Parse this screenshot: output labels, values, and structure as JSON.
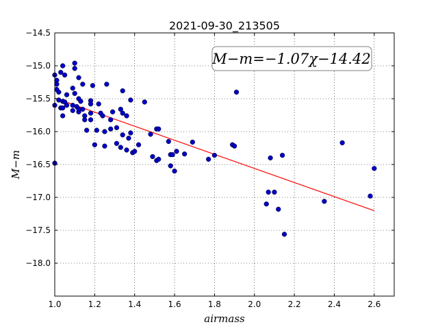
{
  "chart_data": {
    "type": "scatter",
    "title": "2021-09-30_213505",
    "xlabel": "airmass",
    "ylabel": "M−m",
    "xlim": [
      1.0,
      2.7
    ],
    "ylim": [
      -18.5,
      -14.5
    ],
    "y_inverted": true,
    "xticks": [
      1.0,
      1.2,
      1.4,
      1.6,
      1.8,
      2.0,
      2.2,
      2.4,
      2.6
    ],
    "yticks": [
      -14.5,
      -15.0,
      -15.5,
      -16.0,
      -16.5,
      -17.0,
      -17.5,
      -18.0
    ],
    "xtick_labels": [
      "1.0",
      "1.2",
      "1.4",
      "1.6",
      "1.8",
      "2.0",
      "2.2",
      "2.4",
      "2.6"
    ],
    "ytick_labels": [
      "−14.5",
      "−15.0",
      "−15.5",
      "−16.0",
      "−16.5",
      "−17.0",
      "−17.5",
      "−18.0"
    ],
    "grid": true,
    "annotation": "M−m=−1.07χ−14.42",
    "fit": {
      "slope": -1.07,
      "intercept": -14.42,
      "x_range": [
        1.0,
        2.6
      ],
      "color": "#ff0000"
    },
    "point_color": "#0000cc",
    "points": [
      [
        1.0,
        -15.14
      ],
      [
        1.0,
        -15.6
      ],
      [
        1.0,
        -16.48
      ],
      [
        1.01,
        -15.28
      ],
      [
        1.01,
        -15.36
      ],
      [
        1.01,
        -15.22
      ],
      [
        1.02,
        -15.4
      ],
      [
        1.02,
        -15.52
      ],
      [
        1.03,
        -15.1
      ],
      [
        1.03,
        -15.64
      ],
      [
        1.04,
        -15.0
      ],
      [
        1.04,
        -15.54
      ],
      [
        1.04,
        -15.76
      ],
      [
        1.04,
        -15.64
      ],
      [
        1.05,
        -15.14
      ],
      [
        1.05,
        -15.55
      ],
      [
        1.06,
        -15.44
      ],
      [
        1.06,
        -15.6
      ],
      [
        1.09,
        -15.34
      ],
      [
        1.09,
        -15.6
      ],
      [
        1.09,
        -15.68
      ],
      [
        1.1,
        -14.96
      ],
      [
        1.1,
        -15.04
      ],
      [
        1.1,
        -15.42
      ],
      [
        1.11,
        -15.62
      ],
      [
        1.12,
        -15.5
      ],
      [
        1.12,
        -15.7
      ],
      [
        1.12,
        -15.66
      ],
      [
        1.12,
        -15.18
      ],
      [
        1.13,
        -15.54
      ],
      [
        1.14,
        -15.28
      ],
      [
        1.14,
        -15.66
      ],
      [
        1.15,
        -15.76
      ],
      [
        1.15,
        -15.82
      ],
      [
        1.16,
        -15.98
      ],
      [
        1.18,
        -15.53
      ],
      [
        1.18,
        -15.72
      ],
      [
        1.18,
        -15.82
      ],
      [
        1.18,
        -15.58
      ],
      [
        1.19,
        -15.3
      ],
      [
        1.2,
        -16.2
      ],
      [
        1.21,
        -15.98
      ],
      [
        1.22,
        -15.58
      ],
      [
        1.23,
        -15.72
      ],
      [
        1.24,
        -15.76
      ],
      [
        1.25,
        -16.0
      ],
      [
        1.25,
        -16.22
      ],
      [
        1.26,
        -15.28
      ],
      [
        1.28,
        -15.82
      ],
      [
        1.28,
        -15.96
      ],
      [
        1.29,
        -15.7
      ],
      [
        1.31,
        -15.94
      ],
      [
        1.31,
        -16.18
      ],
      [
        1.33,
        -15.66
      ],
      [
        1.33,
        -16.24
      ],
      [
        1.34,
        -15.72
      ],
      [
        1.34,
        -15.38
      ],
      [
        1.34,
        -16.05
      ],
      [
        1.36,
        -15.76
      ],
      [
        1.36,
        -16.28
      ],
      [
        1.37,
        -16.1
      ],
      [
        1.38,
        -15.52
      ],
      [
        1.38,
        -16.02
      ],
      [
        1.39,
        -16.32
      ],
      [
        1.4,
        -16.3
      ],
      [
        1.42,
        -16.2
      ],
      [
        1.45,
        -15.55
      ],
      [
        1.48,
        -16.04
      ],
      [
        1.49,
        -16.38
      ],
      [
        1.51,
        -16.44
      ],
      [
        1.51,
        -15.96
      ],
      [
        1.52,
        -15.96
      ],
      [
        1.52,
        -16.42
      ],
      [
        1.57,
        -16.15
      ],
      [
        1.58,
        -16.35
      ],
      [
        1.58,
        -16.52
      ],
      [
        1.59,
        -16.35
      ],
      [
        1.6,
        -16.6
      ],
      [
        1.61,
        -16.3
      ],
      [
        1.65,
        -16.34
      ],
      [
        1.69,
        -16.16
      ],
      [
        1.77,
        -16.42
      ],
      [
        1.8,
        -16.36
      ],
      [
        1.89,
        -16.2
      ],
      [
        1.9,
        -16.22
      ],
      [
        1.91,
        -15.4
      ],
      [
        2.06,
        -17.1
      ],
      [
        2.07,
        -16.92
      ],
      [
        2.08,
        -16.4
      ],
      [
        2.1,
        -16.92
      ],
      [
        2.12,
        -17.18
      ],
      [
        2.14,
        -16.36
      ],
      [
        2.15,
        -17.56
      ],
      [
        2.35,
        -17.06
      ],
      [
        2.44,
        -16.17
      ],
      [
        2.58,
        -16.98
      ],
      [
        2.6,
        -16.56
      ]
    ]
  }
}
